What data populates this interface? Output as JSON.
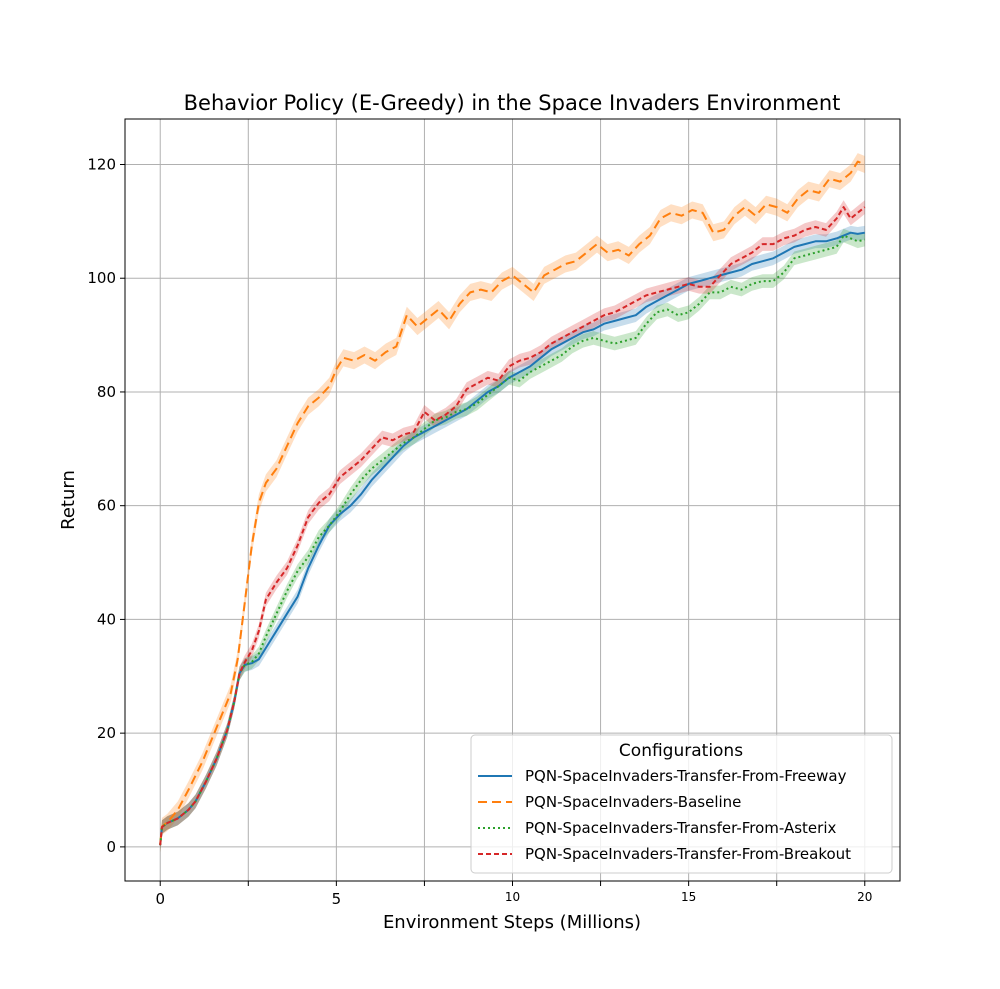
{
  "chart_data": {
    "type": "line",
    "title": "Behavior Policy (E-Greedy) in the Space Invaders Environment",
    "xlabel": "Environment Steps (Millions)",
    "ylabel": "Return",
    "xlim": [
      -1,
      21
    ],
    "ylim": [
      -6,
      128
    ],
    "grid": true,
    "x_ticks": [
      {
        "value": 0,
        "label": "0",
        "small": false
      },
      {
        "value": 2.5,
        "label": "",
        "small": false
      },
      {
        "value": 5,
        "label": "5",
        "small": false
      },
      {
        "value": 7.5,
        "label": "",
        "small": false
      },
      {
        "value": 10,
        "label": "10",
        "small": true
      },
      {
        "value": 12.5,
        "label": "",
        "small": false
      },
      {
        "value": 15,
        "label": "15",
        "small": true
      },
      {
        "value": 17.5,
        "label": "",
        "small": false
      },
      {
        "value": 20,
        "label": "20",
        "small": true
      }
    ],
    "y_ticks": [
      0,
      20,
      40,
      60,
      80,
      100,
      120
    ],
    "legend": {
      "title": "Configurations",
      "position": "lower right"
    },
    "series": [
      {
        "name": "PQN-SpaceInvaders-Transfer-From-Freeway",
        "color": "#1f77b4",
        "dash": "solid",
        "band": 1.2,
        "x": [
          0,
          0.05,
          0.2,
          0.5,
          0.8,
          1.0,
          1.3,
          1.6,
          1.9,
          2.1,
          2.25,
          2.4,
          2.6,
          2.8,
          3.0,
          3.3,
          3.6,
          3.9,
          4.2,
          4.5,
          4.8,
          5.1,
          5.4,
          5.7,
          6.0,
          6.3,
          6.6,
          6.9,
          7.2,
          7.5,
          7.8,
          8.1,
          8.4,
          8.7,
          9.0,
          9.3,
          9.6,
          9.9,
          10.2,
          10.5,
          10.8,
          11.1,
          11.4,
          11.7,
          12.0,
          12.3,
          12.6,
          12.9,
          13.2,
          13.5,
          13.8,
          14.1,
          14.4,
          14.7,
          15.0,
          15.3,
          15.6,
          15.9,
          16.2,
          16.5,
          16.8,
          17.1,
          17.4,
          17.7,
          18.0,
          18.3,
          18.6,
          18.9,
          19.2,
          19.4,
          19.6,
          19.8,
          20.0
        ],
        "values": [
          0.3,
          3.5,
          4.2,
          5.0,
          6.5,
          8.0,
          11.5,
          15.5,
          20.5,
          25.5,
          30.5,
          32.0,
          32.3,
          33.0,
          35.0,
          38.0,
          41.0,
          44.0,
          49.0,
          53.0,
          56.5,
          58.5,
          60.0,
          62.0,
          64.5,
          66.5,
          68.5,
          70.5,
          72.0,
          73.0,
          74.0,
          75.0,
          76.0,
          77.0,
          78.5,
          80.0,
          81.0,
          82.5,
          83.5,
          84.5,
          86.0,
          87.5,
          88.5,
          89.5,
          90.5,
          91.0,
          92.0,
          92.5,
          93.0,
          93.5,
          95.0,
          96.0,
          97.0,
          98.0,
          99.0,
          99.5,
          100.0,
          100.5,
          101.0,
          101.5,
          102.5,
          103.0,
          103.5,
          104.5,
          105.5,
          106.0,
          106.5,
          106.5,
          107.0,
          107.5,
          108.0,
          107.8,
          108.0
        ]
      },
      {
        "name": "PQN-SpaceInvaders-Baseline",
        "color": "#ff7f0e",
        "dash": "9,5",
        "band": 1.5,
        "x": [
          0,
          0.05,
          0.2,
          0.5,
          0.8,
          1.2,
          1.6,
          2.0,
          2.2,
          2.4,
          2.6,
          2.8,
          3.0,
          3.3,
          3.6,
          3.9,
          4.2,
          4.5,
          4.8,
          5.0,
          5.2,
          5.5,
          5.8,
          6.1,
          6.4,
          6.7,
          7.0,
          7.3,
          7.6,
          7.9,
          8.2,
          8.5,
          8.8,
          9.1,
          9.4,
          9.7,
          10.0,
          10.3,
          10.6,
          10.9,
          11.2,
          11.5,
          11.8,
          12.1,
          12.4,
          12.7,
          13.0,
          13.3,
          13.6,
          13.9,
          14.2,
          14.5,
          14.8,
          15.1,
          15.4,
          15.7,
          16.0,
          16.3,
          16.6,
          16.9,
          17.2,
          17.5,
          17.8,
          18.1,
          18.4,
          18.7,
          19.0,
          19.3,
          19.6,
          19.8,
          20.0
        ],
        "values": [
          0.5,
          3.6,
          4.3,
          6.5,
          10.0,
          15.0,
          21.0,
          27.0,
          33.0,
          43.0,
          53.0,
          60.5,
          64.0,
          66.5,
          70.5,
          74.5,
          77.5,
          79.0,
          81.0,
          84.0,
          86.0,
          85.5,
          86.5,
          85.5,
          87.0,
          88.0,
          93.5,
          91.5,
          93.0,
          94.5,
          92.5,
          95.5,
          97.5,
          98.0,
          97.5,
          99.5,
          100.5,
          99.0,
          97.5,
          100.5,
          101.5,
          102.5,
          103.0,
          104.5,
          106.0,
          104.5,
          105.0,
          104.0,
          106.0,
          107.5,
          110.5,
          111.5,
          111.0,
          112.0,
          111.5,
          108.0,
          108.5,
          111.0,
          112.5,
          111.0,
          113.0,
          112.5,
          111.5,
          114.0,
          115.5,
          115.0,
          117.5,
          117.0,
          118.5,
          120.5,
          120.0
        ]
      },
      {
        "name": "PQN-SpaceInvaders-Transfer-From-Asterix",
        "color": "#2ca02c",
        "dash": "2,3",
        "band": 1.2,
        "x": [
          0,
          0.05,
          0.2,
          0.5,
          0.8,
          1.0,
          1.3,
          1.6,
          1.9,
          2.1,
          2.25,
          2.4,
          2.6,
          2.8,
          3.0,
          3.3,
          3.6,
          3.9,
          4.2,
          4.5,
          4.8,
          5.1,
          5.4,
          5.7,
          6.0,
          6.3,
          6.6,
          6.9,
          7.2,
          7.5,
          7.8,
          8.1,
          8.4,
          8.7,
          9.0,
          9.3,
          9.6,
          9.9,
          10.2,
          10.5,
          10.8,
          11.1,
          11.4,
          11.7,
          12.0,
          12.3,
          12.6,
          12.9,
          13.2,
          13.5,
          13.8,
          14.1,
          14.4,
          14.7,
          15.0,
          15.3,
          15.6,
          15.9,
          16.2,
          16.5,
          16.8,
          17.1,
          17.4,
          17.7,
          18.0,
          18.3,
          18.6,
          18.9,
          19.2,
          19.4,
          19.6,
          19.8,
          20.0
        ],
        "values": [
          0.3,
          3.5,
          4.2,
          5.0,
          6.5,
          8.0,
          11.5,
          15.5,
          20.5,
          25.5,
          30.5,
          32.0,
          32.5,
          34.0,
          37.0,
          41.0,
          45.0,
          48.5,
          51.0,
          54.5,
          56.5,
          59.0,
          62.0,
          64.5,
          66.5,
          68.0,
          69.5,
          71.0,
          72.0,
          73.5,
          75.0,
          75.5,
          76.5,
          77.0,
          78.0,
          79.5,
          81.0,
          82.5,
          82.0,
          83.5,
          84.5,
          85.5,
          86.5,
          88.0,
          89.0,
          89.5,
          89.0,
          88.5,
          89.0,
          89.5,
          92.0,
          94.0,
          94.5,
          93.5,
          94.0,
          95.5,
          97.5,
          97.5,
          98.5,
          98.0,
          99.0,
          99.5,
          99.5,
          101.0,
          103.5,
          104.0,
          104.5,
          105.0,
          105.5,
          107.5,
          107.0,
          106.5,
          106.8
        ]
      },
      {
        "name": "PQN-SpaceInvaders-Transfer-From-Breakout",
        "color": "#d62728",
        "dash": "5,3",
        "band": 1.2,
        "x": [
          0,
          0.05,
          0.2,
          0.5,
          0.8,
          1.0,
          1.3,
          1.6,
          1.9,
          2.1,
          2.25,
          2.4,
          2.6,
          2.8,
          3.0,
          3.3,
          3.6,
          3.9,
          4.2,
          4.5,
          4.8,
          5.1,
          5.4,
          5.7,
          6.0,
          6.3,
          6.6,
          6.9,
          7.2,
          7.5,
          7.8,
          8.1,
          8.4,
          8.7,
          9.0,
          9.3,
          9.6,
          9.9,
          10.2,
          10.5,
          10.8,
          11.1,
          11.4,
          11.7,
          12.0,
          12.3,
          12.6,
          12.9,
          13.2,
          13.5,
          13.8,
          14.1,
          14.4,
          14.7,
          15.0,
          15.3,
          15.6,
          15.9,
          16.2,
          16.5,
          16.8,
          17.1,
          17.4,
          17.7,
          18.0,
          18.3,
          18.6,
          18.9,
          19.2,
          19.4,
          19.6,
          19.8,
          20.0
        ],
        "values": [
          0.3,
          3.5,
          4.2,
          5.0,
          6.5,
          8.0,
          11.5,
          15.5,
          20.5,
          25.5,
          30.5,
          32.5,
          34.5,
          38.0,
          43.5,
          46.5,
          49.0,
          53.0,
          58.0,
          60.5,
          62.0,
          65.0,
          66.5,
          68.0,
          70.0,
          72.0,
          71.5,
          72.5,
          73.0,
          76.5,
          75.0,
          76.0,
          77.5,
          80.5,
          81.5,
          82.5,
          82.0,
          84.5,
          85.5,
          86.0,
          87.0,
          88.5,
          89.5,
          90.5,
          91.5,
          92.5,
          93.5,
          94.0,
          95.0,
          96.0,
          97.0,
          97.5,
          98.0,
          98.5,
          99.0,
          98.5,
          98.5,
          100.5,
          102.5,
          103.5,
          104.5,
          106.0,
          106.0,
          107.0,
          107.5,
          108.5,
          109.0,
          108.5,
          110.5,
          112.5,
          110.5,
          111.5,
          112.5
        ]
      }
    ]
  }
}
